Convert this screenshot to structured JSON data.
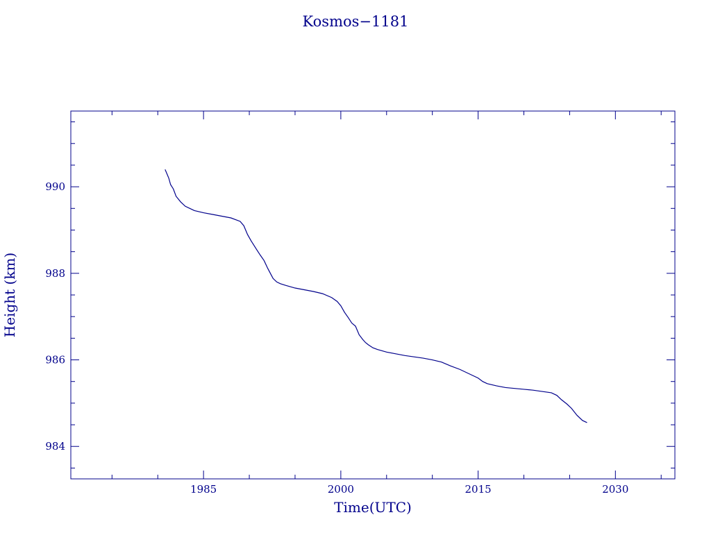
{
  "chart_data": {
    "type": "line",
    "title": "Kosmos−1181",
    "xlabel": "Time(UTC)",
    "ylabel": "Height (km)",
    "xlim": [
      1970.5,
      2036.5
    ],
    "ylim": [
      983.25,
      991.75
    ],
    "x_ticks": [
      1985,
      2000,
      2015,
      2030
    ],
    "x_tick_labels": [
      "1985",
      "2000",
      "2015",
      "2030"
    ],
    "y_ticks": [
      984,
      986,
      988,
      990
    ],
    "y_tick_labels": [
      "984",
      "986",
      "988",
      "990"
    ],
    "grid": false,
    "series": [
      {
        "x": [
          1980.8,
          1981.0,
          1981.2,
          1981.4,
          1981.7,
          1982.0,
          1982.5,
          1983.0,
          1983.5,
          1984.0,
          1985.0,
          1986.0,
          1987.0,
          1988.0,
          1989.0,
          1989.4,
          1989.8,
          1990.2,
          1990.8,
          1991.2,
          1991.6,
          1992.0,
          1992.3,
          1992.6,
          1993.0,
          1993.4,
          1994.0,
          1995.0,
          1996.0,
          1997.0,
          1998.0,
          1999.0,
          1999.6,
          2000.0,
          2000.4,
          2000.8,
          2001.2,
          2001.6,
          2002.0,
          2002.4,
          2002.7,
          2003.0,
          2003.5,
          2004.0,
          2005.0,
          2006.0,
          2007.0,
          2008.0,
          2009.0,
          2010.0,
          2011.0,
          2012.0,
          2013.0,
          2014.0,
          2015.0,
          2015.5,
          2016.0,
          2017.0,
          2018.0,
          2019.0,
          2020.0,
          2021.0,
          2022.0,
          2023.0,
          2023.6,
          2024.1,
          2024.7,
          2025.2,
          2025.8,
          2026.4,
          2026.9
        ],
        "values": [
          990.4,
          990.3,
          990.2,
          990.05,
          989.95,
          989.78,
          989.65,
          989.55,
          989.5,
          989.45,
          989.4,
          989.36,
          989.32,
          989.28,
          989.2,
          989.1,
          988.9,
          988.75,
          988.55,
          988.42,
          988.3,
          988.12,
          988.0,
          987.88,
          987.8,
          987.76,
          987.72,
          987.66,
          987.62,
          987.58,
          987.53,
          987.44,
          987.35,
          987.25,
          987.1,
          986.98,
          986.85,
          986.78,
          986.58,
          986.47,
          986.4,
          986.35,
          986.28,
          986.24,
          986.18,
          986.14,
          986.1,
          986.07,
          986.04,
          986.0,
          985.95,
          985.86,
          985.78,
          985.68,
          985.58,
          985.5,
          985.45,
          985.4,
          985.36,
          985.34,
          985.32,
          985.3,
          985.27,
          985.24,
          985.18,
          985.08,
          984.98,
          984.88,
          984.72,
          984.6,
          984.55
        ]
      }
    ]
  }
}
